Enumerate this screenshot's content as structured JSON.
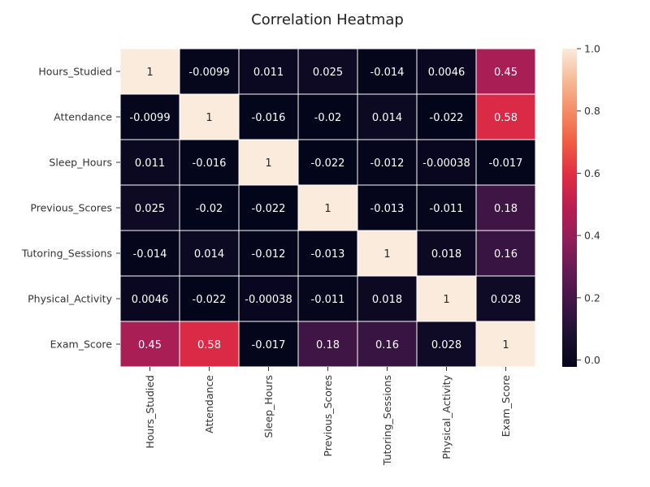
{
  "chart_data": {
    "type": "heatmap",
    "title": "Correlation Heatmap",
    "rows": [
      "Hours_Studied",
      "Attendance",
      "Sleep_Hours",
      "Previous_Scores",
      "Tutoring_Sessions",
      "Physical_Activity",
      "Exam_Score"
    ],
    "columns": [
      "Hours_Studied",
      "Attendance",
      "Sleep_Hours",
      "Previous_Scores",
      "Tutoring_Sessions",
      "Physical_Activity",
      "Exam_Score"
    ],
    "values": [
      [
        1,
        -0.0099,
        0.011,
        0.025,
        -0.014,
        0.0046,
        0.45
      ],
      [
        -0.0099,
        1,
        -0.016,
        -0.02,
        0.014,
        -0.022,
        0.58
      ],
      [
        0.011,
        -0.016,
        1,
        -0.022,
        -0.012,
        -0.00038,
        -0.017
      ],
      [
        0.025,
        -0.02,
        -0.022,
        1,
        -0.013,
        -0.011,
        0.18
      ],
      [
        -0.014,
        0.014,
        -0.012,
        -0.013,
        1,
        0.018,
        0.16
      ],
      [
        0.0046,
        -0.022,
        -0.00038,
        -0.011,
        0.018,
        1,
        0.028
      ],
      [
        0.45,
        0.58,
        -0.017,
        0.18,
        0.16,
        0.028,
        1
      ]
    ],
    "value_labels": [
      [
        "1",
        "-0.0099",
        "0.011",
        "0.025",
        "-0.014",
        "0.0046",
        "0.45"
      ],
      [
        "-0.0099",
        "1",
        "-0.016",
        "-0.02",
        "0.014",
        "-0.022",
        "0.58"
      ],
      [
        "0.011",
        "-0.016",
        "1",
        "-0.022",
        "-0.012",
        "-0.00038",
        "-0.017"
      ],
      [
        "0.025",
        "-0.02",
        "-0.022",
        "1",
        "-0.013",
        "-0.011",
        "0.18"
      ],
      [
        "-0.014",
        "0.014",
        "-0.012",
        "-0.013",
        "1",
        "0.018",
        "0.16"
      ],
      [
        "0.0046",
        "-0.022",
        "-0.00038",
        "-0.011",
        "0.018",
        "1",
        "0.028"
      ],
      [
        "0.45",
        "0.58",
        "-0.017",
        "0.18",
        "0.16",
        "0.028",
        "1"
      ]
    ],
    "colorbar": {
      "range": [
        -0.022,
        1
      ],
      "ticks": [
        0.0,
        0.2,
        0.4,
        0.6,
        0.8,
        1.0
      ],
      "tick_labels": [
        "0.0",
        "0.2",
        "0.4",
        "0.6",
        "0.8",
        "1.0"
      ]
    },
    "colormap": "rocket",
    "cell_border_color": "#ffffff"
  }
}
